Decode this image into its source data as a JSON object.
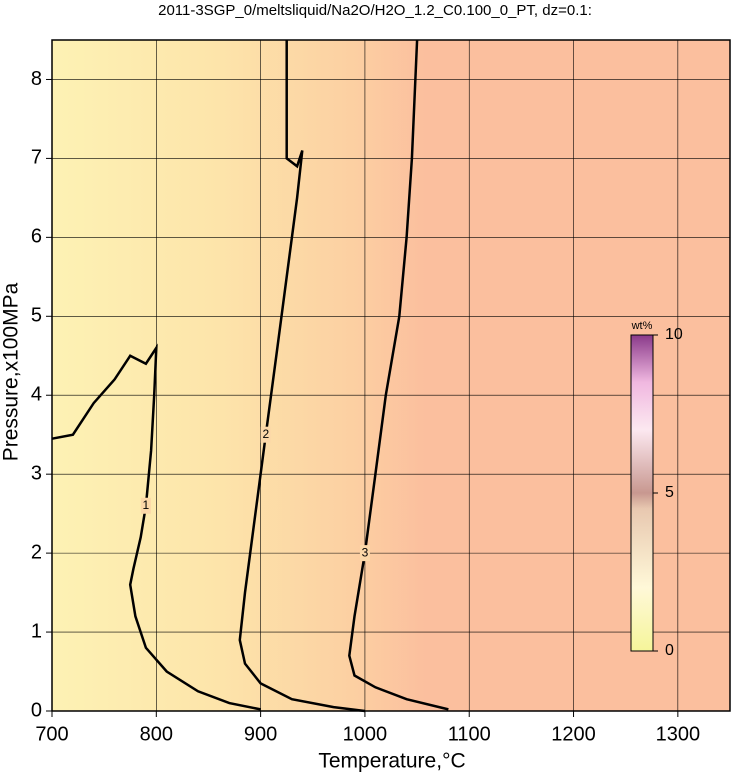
{
  "chart_data": {
    "type": "contour",
    "title": "2011-3SGP_0/meltsliquid/Na2O/H2O_1.2_C0.100_0_PT, dz=0.1:",
    "x_label": "Temperature,°C",
    "y_label": "Pressure,x100MPa",
    "xlim": [
      700,
      1350
    ],
    "xticks": [
      700,
      800,
      900,
      1000,
      1100,
      1200,
      1300
    ],
    "ylim": [
      0,
      8.5
    ],
    "yticks": [
      0,
      1,
      2,
      3,
      4,
      5,
      6,
      7,
      8
    ],
    "grid": true,
    "contours": [
      {
        "level": 1,
        "color": "#000000",
        "x": [
          700,
          720,
          740,
          760,
          775,
          790,
          800,
          798,
          795,
          790,
          785,
          778,
          775,
          780,
          790,
          810,
          840,
          870,
          900
        ],
        "y": [
          3.45,
          3.5,
          3.9,
          4.2,
          4.5,
          4.4,
          4.6,
          4.0,
          3.3,
          2.6,
          2.2,
          1.8,
          1.6,
          1.2,
          0.8,
          0.5,
          0.25,
          0.1,
          0.02
        ]
      },
      {
        "level": 2,
        "color": "#000000",
        "x": [
          925,
          925,
          935,
          940,
          935,
          930,
          925,
          915,
          905,
          895,
          885,
          880,
          885,
          900,
          930,
          970,
          1000
        ],
        "y": [
          8.5,
          7.0,
          6.9,
          7.1,
          6.5,
          6.0,
          5.5,
          4.5,
          3.5,
          2.5,
          1.5,
          0.9,
          0.6,
          0.35,
          0.15,
          0.05,
          0
        ]
      },
      {
        "level": 3,
        "color": "#000000",
        "x": [
          1050,
          1045,
          1040,
          1033,
          1020,
          1010,
          1000,
          990,
          985,
          990,
          1010,
          1040,
          1080
        ],
        "y": [
          8.5,
          7,
          6,
          5,
          4,
          3,
          2,
          1.2,
          0.7,
          0.45,
          0.3,
          0.15,
          0.02
        ]
      }
    ],
    "colorbar": {
      "label": "wt%",
      "lim": [
        0,
        10
      ],
      "ticks": [
        0,
        5,
        10
      ]
    }
  }
}
